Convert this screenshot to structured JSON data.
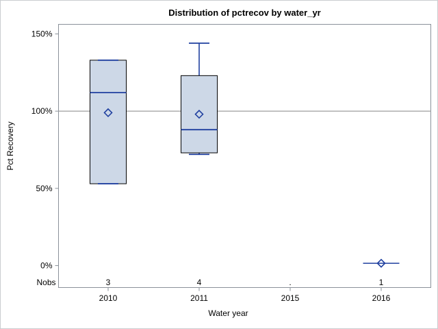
{
  "chart_data": {
    "type": "box",
    "title": "Distribution of pctrecov by water_yr",
    "xlabel": "Water year",
    "ylabel": "Pct Recovery",
    "categories": [
      "2010",
      "2011",
      "2015",
      "2016"
    ],
    "ytick_values": [
      0,
      50,
      100,
      150
    ],
    "ytick_labels": [
      "0%",
      "50%",
      "100%",
      "150%"
    ],
    "ylim": [
      0,
      150
    ],
    "refline_y": 100,
    "grid": "off",
    "legend": "none",
    "nobs_label": "Nobs",
    "boxes": [
      {
        "category": "2010",
        "nobs": "3",
        "q1": 53,
        "median": 112,
        "q3": 133,
        "whisker_low": 53,
        "whisker_high": 133,
        "mean": 99
      },
      {
        "category": "2011",
        "nobs": "4",
        "q1": 73,
        "median": 88,
        "q3": 123,
        "whisker_low": 72,
        "whisker_high": 144,
        "mean": 98
      },
      {
        "category": "2015",
        "nobs": ".",
        "no_data": true
      },
      {
        "category": "2016",
        "nobs": "1",
        "single_value": 1.5,
        "mean": 1.5
      }
    ],
    "colors": {
      "box_fill": "#cdd8e7",
      "box_border": "#000000",
      "box_lines": "#1f3f9f",
      "refline": "#a6a6a6",
      "frame": "#8a9199",
      "text": "#000000"
    }
  }
}
